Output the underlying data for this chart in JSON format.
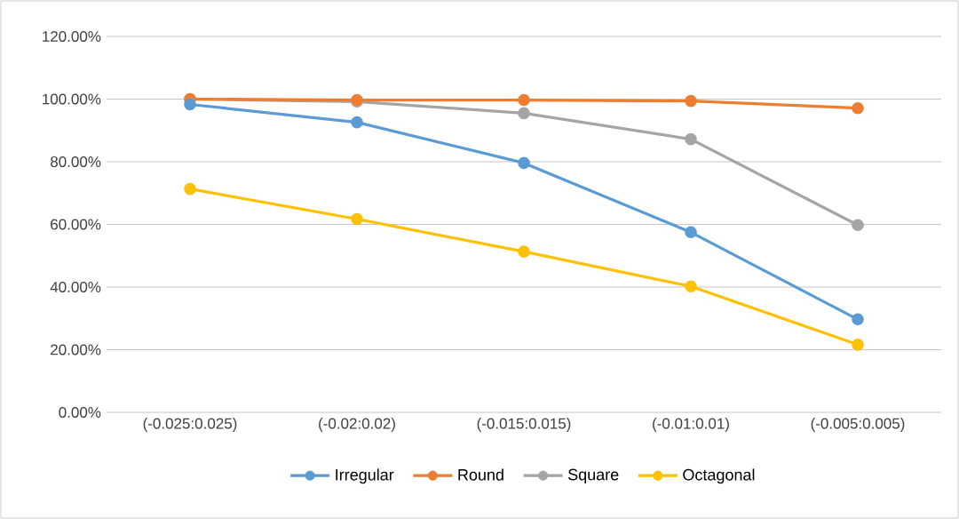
{
  "chart_data": {
    "type": "line",
    "categories": [
      "(-0.025:0.025)",
      "(-0.02:0.02)",
      "(-0.015:0.015)",
      "(-0.01:0.01)",
      "(-0.005:0.005)"
    ],
    "series": [
      {
        "name": "Irregular",
        "color": "#5b9bd5",
        "values": [
          98.3,
          92.6,
          79.6,
          57.5,
          29.7
        ]
      },
      {
        "name": "Round",
        "color": "#ed7d31",
        "values": [
          100,
          99.7,
          99.7,
          99.4,
          97.1
        ]
      },
      {
        "name": "Square",
        "color": "#a5a5a5",
        "values": [
          100,
          99.2,
          95.5,
          87.2,
          59.8
        ]
      },
      {
        "name": "Octagonal",
        "color": "#ffc000",
        "values": [
          71.3,
          61.7,
          51.3,
          40.2,
          21.6
        ]
      }
    ],
    "ylim": [
      0,
      120
    ],
    "yticks": [
      {
        "value": 0,
        "label": "0.00%"
      },
      {
        "value": 20,
        "label": "20.00%"
      },
      {
        "value": 40,
        "label": "40.00%"
      },
      {
        "value": 60,
        "label": "60.00%"
      },
      {
        "value": 80,
        "label": "80.00%"
      },
      {
        "value": 100,
        "label": "100.00%"
      },
      {
        "value": 120,
        "label": "120.00%"
      }
    ],
    "grid": "y",
    "legend": "bottom",
    "marker": "circle",
    "line_style": "solid"
  }
}
